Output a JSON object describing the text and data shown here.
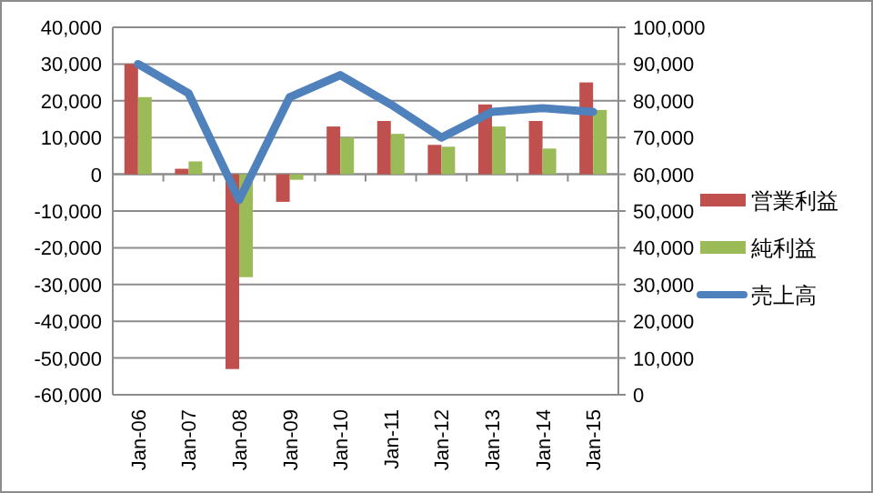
{
  "chart_data": {
    "type": "bar",
    "categories": [
      "Jan-06",
      "Jan-07",
      "Jan-08",
      "Jan-09",
      "Jan-10",
      "Jan-11",
      "Jan-12",
      "Jan-13",
      "Jan-14",
      "Jan-15"
    ],
    "series": [
      {
        "name": "営業利益",
        "color": "#c0504d",
        "values": [
          30000,
          1500,
          -53000,
          -7500,
          13000,
          14500,
          8000,
          19000,
          14500,
          25000
        ]
      },
      {
        "name": "純利益",
        "color": "#9bbb59",
        "values": [
          21000,
          3500,
          -28000,
          -1500,
          10000,
          11000,
          7500,
          13000,
          7000,
          17500
        ]
      },
      {
        "name": "売上高",
        "type": "line",
        "axis": "y2",
        "color": "#4f81bd",
        "values": [
          90000,
          82000,
          53000,
          81000,
          87000,
          79000,
          70000,
          77000,
          78000,
          77000
        ]
      }
    ],
    "ylim": [
      -60000,
      40000
    ],
    "yticks": [
      {
        "value": -60000,
        "label": "-60,000"
      },
      {
        "value": -50000,
        "label": "-50,000"
      },
      {
        "value": -40000,
        "label": "-40,000"
      },
      {
        "value": -30000,
        "label": "-30,000"
      },
      {
        "value": -20000,
        "label": "-20,000"
      },
      {
        "value": -10000,
        "label": "-10,000"
      },
      0,
      {
        "value": 10000,
        "label": "10,000"
      },
      {
        "value": 20000,
        "label": "20,000"
      },
      {
        "value": 30000,
        "label": "30,000"
      },
      {
        "value": 40000,
        "label": "40,000"
      }
    ],
    "y2lim": [
      0,
      100000
    ],
    "y2ticks": [
      0,
      {
        "value": 10000,
        "label": "10,000"
      },
      {
        "value": 20000,
        "label": "20,000"
      },
      {
        "value": 30000,
        "label": "30,000"
      },
      {
        "value": 40000,
        "label": "40,000"
      },
      {
        "value": 50000,
        "label": "50,000"
      },
      {
        "value": 60000,
        "label": "60,000"
      },
      {
        "value": 70000,
        "label": "70,000"
      },
      {
        "value": 80000,
        "label": "80,000"
      },
      {
        "value": 90000,
        "label": "90,000"
      },
      {
        "value": 100000,
        "label": "100,000"
      }
    ],
    "grid": "y",
    "legend": "right"
  }
}
